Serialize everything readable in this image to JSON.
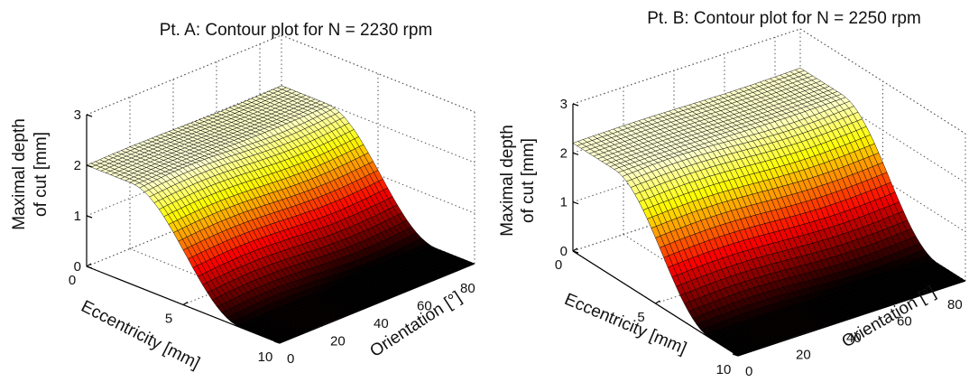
{
  "chart_data": [
    {
      "type": "surface",
      "title": "Pt. A: Contour plot for N = 2230 rpm",
      "zlabel_lines": [
        "Maximal depth",
        "of cut [mm]"
      ],
      "xlabel": "Eccentricity [mm]",
      "ylabel": "Orientation [°]",
      "x_range": [
        0,
        10
      ],
      "y_range": [
        0,
        90
      ],
      "z_range": [
        0,
        3
      ],
      "x_ticks": [
        "0",
        "5",
        "10"
      ],
      "y_ticks": [
        "0",
        "20",
        "40",
        "60",
        "80"
      ],
      "z_ticks": [
        "0",
        "1",
        "2",
        "3"
      ],
      "grid": true,
      "colormap": "hot",
      "surface": {
        "plateau_depth": 2.0,
        "plateau_end_ecc": 2.3,
        "zero_start_ecc": 8.0
      }
    },
    {
      "type": "surface",
      "title": "Pt. B: Contour plot for N = 2250 rpm",
      "zlabel_lines": [
        "Maximal depth",
        "of cut [mm]"
      ],
      "xlabel": "Eccentricity [mm]",
      "ylabel": "Orientation [°]",
      "x_range": [
        0,
        10
      ],
      "y_range": [
        0,
        90
      ],
      "z_range": [
        0,
        3
      ],
      "x_ticks": [
        "0",
        "5",
        "10"
      ],
      "y_ticks": [
        "0",
        "20",
        "40",
        "60",
        "80"
      ],
      "z_ticks": [
        "0",
        "1",
        "2",
        "3"
      ],
      "grid": true,
      "colormap": "hot",
      "surface": {
        "plateau_depth": 2.2,
        "plateau_end_ecc": 2.5,
        "zero_start_ecc": 8.3
      }
    }
  ]
}
